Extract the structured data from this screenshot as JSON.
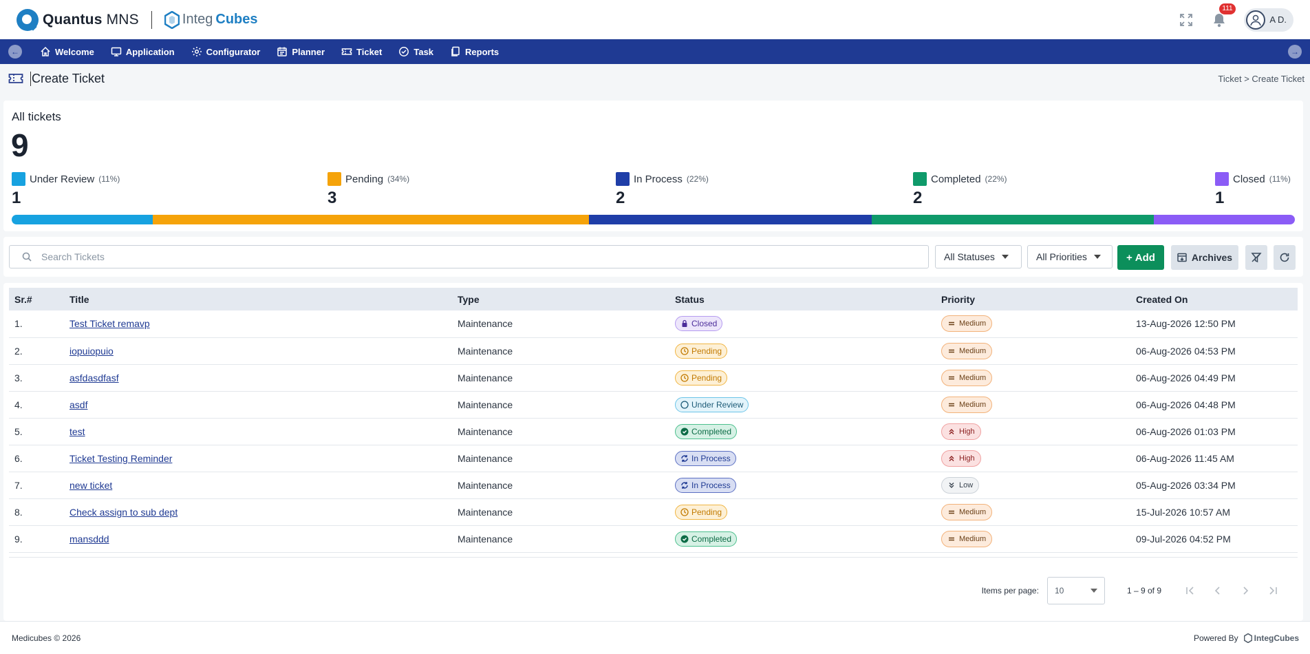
{
  "header": {
    "brand_name_bold": "Quantus",
    "brand_name_light": " MNS",
    "partner_a": "Integ",
    "partner_b": "Cubes",
    "notifications_count": "111",
    "user_initials": "A D."
  },
  "nav": {
    "items": [
      {
        "label": "Welcome",
        "icon": "home-icon"
      },
      {
        "label": "Application",
        "icon": "monitor-icon"
      },
      {
        "label": "Configurator",
        "icon": "gear-icon"
      },
      {
        "label": "Planner",
        "icon": "calendar-icon"
      },
      {
        "label": "Ticket",
        "icon": "ticket-icon"
      },
      {
        "label": "Task",
        "icon": "check-circle-icon"
      },
      {
        "label": "Reports",
        "icon": "documents-icon"
      }
    ]
  },
  "page": {
    "title": "Create Ticket",
    "breadcrumb": "Ticket > Create Ticket"
  },
  "summary": {
    "label": "All tickets",
    "total": "9",
    "stats": [
      {
        "name": "Under Review",
        "pct": "(11%)",
        "count": "1",
        "color": "#17a2e0",
        "share": 0.11
      },
      {
        "name": "Pending",
        "pct": "(34%)",
        "count": "3",
        "color": "#f5a30a",
        "share": 0.34
      },
      {
        "name": "In Process",
        "pct": "(22%)",
        "count": "2",
        "color": "#1f3ea8",
        "share": 0.22
      },
      {
        "name": "Completed",
        "pct": "(22%)",
        "count": "2",
        "color": "#0f9a6a",
        "share": 0.22
      },
      {
        "name": "Closed",
        "pct": "(11%)",
        "count": "1",
        "color": "#8b5cf6",
        "share": 0.11
      }
    ]
  },
  "toolbar": {
    "search_placeholder": "Search Tickets",
    "status_filter": "All Statuses",
    "priority_filter": "All Priorities",
    "add_label": "Add",
    "archives_label": "Archives"
  },
  "table": {
    "columns": [
      "Sr.#",
      "Title",
      "Type",
      "Status",
      "Priority",
      "Created On"
    ],
    "rows": [
      {
        "sr": "1.",
        "title": "Test Ticket remavp",
        "type": "Maintenance",
        "status": "Closed",
        "status_key": "closed",
        "priority": "Medium",
        "priority_key": "medium",
        "created": "13-Aug-2026 12:50 PM"
      },
      {
        "sr": "2.",
        "title": "iopuiopuio",
        "type": "Maintenance",
        "status": "Pending",
        "status_key": "pending",
        "priority": "Medium",
        "priority_key": "medium",
        "created": "06-Aug-2026 04:53 PM"
      },
      {
        "sr": "3.",
        "title": "asfdasdfasf",
        "type": "Maintenance",
        "status": "Pending",
        "status_key": "pending",
        "priority": "Medium",
        "priority_key": "medium",
        "created": "06-Aug-2026 04:49 PM"
      },
      {
        "sr": "4.",
        "title": "asdf",
        "type": "Maintenance",
        "status": "Under Review",
        "status_key": "review",
        "priority": "Medium",
        "priority_key": "medium",
        "created": "06-Aug-2026 04:48 PM"
      },
      {
        "sr": "5.",
        "title": "test",
        "type": "Maintenance",
        "status": "Completed",
        "status_key": "completed",
        "priority": "High",
        "priority_key": "high",
        "created": "06-Aug-2026 01:03 PM"
      },
      {
        "sr": "6.",
        "title": "Ticket Testing Reminder",
        "type": "Maintenance",
        "status": "In Process",
        "status_key": "process",
        "priority": "High",
        "priority_key": "high",
        "created": "06-Aug-2026 11:45 AM"
      },
      {
        "sr": "7.",
        "title": "new ticket",
        "type": "Maintenance",
        "status": "In Process",
        "status_key": "process",
        "priority": "Low",
        "priority_key": "low",
        "created": "05-Aug-2026 03:34 PM"
      },
      {
        "sr": "8.",
        "title": "Check assign to sub dept",
        "type": "Maintenance",
        "status": "Pending",
        "status_key": "pending",
        "priority": "Medium",
        "priority_key": "medium",
        "created": "15-Jul-2026 10:57 AM"
      },
      {
        "sr": "9.",
        "title": "mansddd",
        "type": "Maintenance",
        "status": "Completed",
        "status_key": "completed",
        "priority": "Medium",
        "priority_key": "medium",
        "created": "09-Jul-2026 04:52 PM"
      }
    ]
  },
  "pager": {
    "items_per_page_label": "Items per page:",
    "items_per_page_value": "10",
    "range": "1 – 9 of 9"
  },
  "footer": {
    "copyright": "Medicubes © 2026",
    "powered_by": "Powered By",
    "powered_brand": "IntegCubes"
  }
}
